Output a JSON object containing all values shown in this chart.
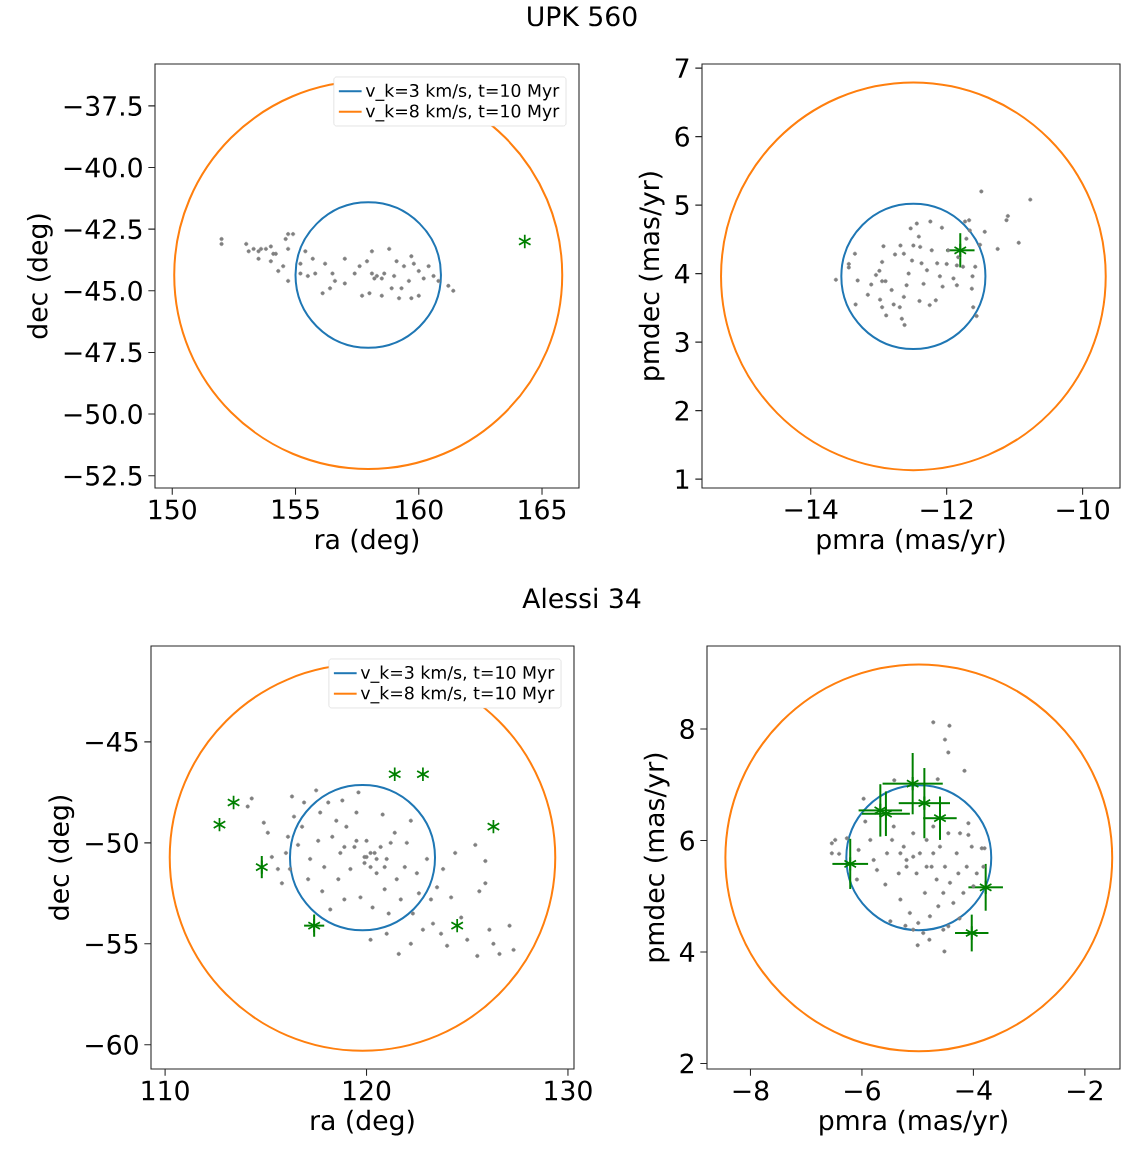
{
  "chart_data": [
    {
      "type": "scatter",
      "title": "UPK 560",
      "xlabel": "ra (deg)",
      "ylabel": "dec (deg)",
      "xlim": [
        149.3,
        166.5
      ],
      "ylim": [
        -53.0,
        -35.8
      ],
      "xticks": [
        150,
        155,
        160,
        165
      ],
      "yticks": [
        {
          "value": -37.5,
          "label": "−37.5"
        },
        {
          "value": -40.0,
          "label": "−40.0"
        },
        {
          "value": -42.5,
          "label": "−42.5"
        },
        {
          "value": -45.0,
          "label": "−45.0"
        },
        {
          "value": -47.5,
          "label": "−47.5"
        },
        {
          "value": -50.0,
          "label": "−50.0"
        },
        {
          "value": -52.5,
          "label": "−52.5"
        }
      ],
      "legend": "top right",
      "grid": false,
      "series": [
        {
          "type": "line",
          "name": "v_k=3 km/s, t=10 Myr",
          "color": "#1f77b4"
        },
        {
          "type": "line",
          "name": "v_k=8 km/s, t=10 Myr",
          "color": "#ff7f0e"
        },
        {
          "color": "#808080",
          "marker": "circle",
          "x": [
            152.0,
            152.0,
            153.0,
            153.1,
            153.3,
            153.5,
            153.6,
            153.8,
            154.0,
            154.1,
            154.2,
            154.0,
            153.5,
            154.3,
            154.5,
            154.7,
            154.6,
            154.7,
            154.9,
            155.4,
            155.2,
            155.2,
            154.7,
            155.5,
            155.7,
            155.8,
            156.1,
            156.2,
            156.4,
            156.5,
            156.6,
            157.0,
            157.0,
            157.4,
            157.6,
            157.7,
            157.9,
            158.1,
            158.0,
            158.2,
            158.3,
            158.5,
            158.6,
            158.8,
            158.9,
            159.0,
            159.1,
            159.2,
            159.3,
            159.7,
            159.7,
            159.8,
            160.0,
            160.0,
            160.2,
            160.4,
            160.6,
            160.8,
            161.2,
            161.4,
            159.4,
            159.6,
            158.5,
            158.1
          ],
          "values": [
            -42.9,
            -43.1,
            -43.1,
            -43.4,
            -43.3,
            -43.4,
            -43.3,
            -43.3,
            -43.2,
            -43.5,
            -43.5,
            -43.8,
            -43.7,
            -44.2,
            -44.0,
            -43.3,
            -42.9,
            -42.7,
            -42.7,
            -43.4,
            -43.9,
            -44.3,
            -44.6,
            -44.4,
            -43.7,
            -44.3,
            -45.1,
            -43.9,
            -44.9,
            -44.3,
            -44.6,
            -43.7,
            -44.7,
            -44.3,
            -44.0,
            -45.2,
            -43.8,
            -43.4,
            -45.1,
            -44.5,
            -44.4,
            -45.2,
            -44.3,
            -43.3,
            -44.9,
            -44.4,
            -43.8,
            -45.3,
            -44.9,
            -43.6,
            -45.3,
            -43.9,
            -44.2,
            -45.2,
            -44.5,
            -44.0,
            -44.4,
            -44.6,
            -44.8,
            -45.0,
            -44.0,
            -44.6,
            -44.5,
            -44.3
          ]
        },
        {
          "color": "#008000",
          "marker": "cross",
          "x": [
            164.3
          ],
          "values": [
            -43.0
          ]
        }
      ]
    },
    {
      "type": "scatter",
      "xlabel": "pmra (mas/yr)",
      "ylabel": "pmdec (mas/yr)",
      "xlim": [
        -15.6,
        -9.45
      ],
      "ylim": [
        0.87,
        7.06
      ],
      "xticks": [
        {
          "value": -14,
          "label": "−14"
        },
        {
          "value": -12,
          "label": "−12"
        },
        {
          "value": -10,
          "label": "−10"
        }
      ],
      "yticks": [
        1,
        2,
        3,
        4,
        5,
        6,
        7
      ],
      "grid": false,
      "series": [
        {
          "type": "line",
          "color": "#1f77b4"
        },
        {
          "type": "line",
          "color": "#ff7f0e"
        },
        {
          "color": "#808080",
          "marker": "circle",
          "x": [
            -13.63,
            -13.44,
            -13.44,
            -13.35,
            -13.31,
            -13.34,
            -13.16,
            -13.11,
            -13.04,
            -12.99,
            -12.95,
            -12.93,
            -12.95,
            -12.9,
            -12.98,
            -12.95,
            -12.89,
            -12.81,
            -12.78,
            -12.76,
            -12.69,
            -12.68,
            -12.66,
            -12.63,
            -12.62,
            -12.63,
            -12.59,
            -12.56,
            -12.51,
            -12.49,
            -12.53,
            -12.44,
            -12.41,
            -12.39,
            -12.4,
            -12.37,
            -12.34,
            -12.29,
            -12.25,
            -12.24,
            -12.22,
            -12.16,
            -12.14,
            -12.1,
            -12.07,
            -12.06,
            -12.0,
            -11.98,
            -11.9,
            -11.85,
            -11.83,
            -11.76,
            -11.73,
            -11.71,
            -11.66,
            -11.63,
            -11.62,
            -11.61,
            -11.58,
            -11.56,
            -11.51,
            -11.49,
            -11.44,
            -11.25,
            -11.12,
            -11.1,
            -10.94,
            -10.77,
            -11.67,
            -11.85
          ],
          "values": [
            3.91,
            4.14,
            4.09,
            4.29,
            3.9,
            3.55,
            3.69,
            3.84,
            3.98,
            4.04,
            4.17,
            4.4,
            3.89,
            3.89,
            3.62,
            3.51,
            3.39,
            3.76,
            3.55,
            4.28,
            3.51,
            4.41,
            3.34,
            3.66,
            3.25,
            4.29,
            3.83,
            4.0,
            4.19,
            4.41,
            4.66,
            4.73,
            4.54,
            4.39,
            3.6,
            4.15,
            3.85,
            4.05,
            3.54,
            4.76,
            4.34,
            3.61,
            4.15,
            3.96,
            4.67,
            3.81,
            4.14,
            4.34,
            3.93,
            3.83,
            4.24,
            4.1,
            4.76,
            4.51,
            4.63,
            3.78,
            3.96,
            3.51,
            4.1,
            3.38,
            4.42,
            5.2,
            4.61,
            4.36,
            4.78,
            4.84,
            4.45,
            5.08,
            4.78,
            4.12
          ]
        },
        {
          "color": "#008000",
          "marker": "cross",
          "x": [
            -11.8
          ],
          "values": [
            4.34
          ],
          "errors": [
            0.25
          ],
          "xerrors": [
            0.21
          ]
        }
      ]
    },
    {
      "type": "scatter",
      "title": "Alessi 34",
      "xlabel": "ra (deg)",
      "ylabel": "dec (deg)",
      "xlim": [
        109.3,
        130.3
      ],
      "ylim": [
        -61.2,
        -40.25
      ],
      "xticks": [
        110,
        120,
        130
      ],
      "yticks": [
        {
          "value": -45,
          "label": "−45"
        },
        {
          "value": -50,
          "label": "−50"
        },
        {
          "value": -55,
          "label": "−55"
        },
        {
          "value": -60,
          "label": "−60"
        }
      ],
      "legend": "top right",
      "grid": false,
      "series": [
        {
          "type": "line",
          "name": "v_k=3 km/s, t=10 Myr",
          "color": "#1f77b4"
        },
        {
          "type": "line",
          "name": "v_k=8 km/s, t=10 Myr",
          "color": "#ff7f0e"
        },
        {
          "color": "#808080",
          "marker": "circle",
          "x": [
            114.3,
            114.1,
            114.9,
            115.1,
            115.3,
            115.6,
            115.8,
            116.3,
            116.4,
            116.1,
            116.0,
            116.2,
            116.6,
            116.8,
            116.9,
            117.1,
            117.2,
            117.5,
            117.6,
            117.7,
            117.8,
            117.9,
            118.1,
            118.2,
            118.3,
            118.5,
            118.6,
            118.7,
            118.8,
            118.9,
            119.0,
            119.2,
            119.4,
            119.5,
            119.6,
            119.7,
            119.9,
            120.0,
            120.2,
            120.3,
            120.4,
            120.5,
            120.7,
            120.8,
            120.9,
            121.0,
            121.1,
            121.2,
            121.4,
            121.5,
            121.7,
            121.9,
            122.0,
            122.2,
            122.3,
            122.5,
            122.6,
            122.8,
            123.0,
            123.2,
            123.3,
            123.5,
            123.7,
            123.8,
            124.0,
            124.2,
            124.4,
            124.7,
            125.0,
            125.4,
            125.6,
            125.9,
            125.9,
            126.1,
            126.3,
            126.6,
            127.1,
            127.3,
            121.6,
            120.2,
            125.5,
            121.0,
            122.2,
            120.0,
            120.2,
            120.5,
            119.9,
            119.5,
            118.9,
            120.9
          ],
          "values": [
            -47.8,
            -48.2,
            -49.0,
            -49.5,
            -50.7,
            -51.3,
            -52.0,
            -47.7,
            -48.7,
            -49.7,
            -50.5,
            -51.3,
            -50.1,
            -49.2,
            -48.0,
            -51.8,
            -50.8,
            -47.4,
            -49.9,
            -48.5,
            -52.4,
            -51.2,
            -48.0,
            -53.3,
            -49.7,
            -48.9,
            -51.8,
            -50.5,
            -47.9,
            -52.8,
            -49.2,
            -51.3,
            -50.2,
            -48.5,
            -47.5,
            -52.7,
            -50.7,
            -49.9,
            -51.2,
            -53.2,
            -50.5,
            -51.5,
            -50.2,
            -48.6,
            -52.3,
            -50.8,
            -53.5,
            -50.0,
            -49.5,
            -51.8,
            -52.8,
            -51.2,
            -50.0,
            -48.9,
            -53.5,
            -51.5,
            -52.5,
            -54.3,
            -50.8,
            -52.8,
            -54.0,
            -52.2,
            -54.5,
            -51.3,
            -55.1,
            -52.7,
            -50.5,
            -53.7,
            -54.8,
            -50.1,
            -52.4,
            -50.9,
            -52.0,
            -54.3,
            -55.0,
            -55.5,
            -54.1,
            -55.3,
            -55.5,
            -54.8,
            -55.6,
            -54.5,
            -55.0,
            -50.7,
            -50.5,
            -50.8,
            -51.0,
            -49.9,
            -50.2,
            -51.2
          ]
        },
        {
          "color": "#008000",
          "marker": "cross",
          "x": [
            112.7,
            113.4,
            114.8,
            117.4,
            121.4,
            122.8,
            126.3,
            124.5
          ],
          "values": [
            -49.1,
            -48.0,
            -51.2,
            -54.1,
            -46.6,
            -46.6,
            -49.2,
            -54.1
          ],
          "errors": [
            null,
            null,
            0.55,
            0.55,
            null,
            null,
            null,
            null
          ],
          "xerrors": [
            null,
            null,
            null,
            0.5,
            null,
            null,
            null,
            null
          ]
        }
      ]
    },
    {
      "type": "scatter",
      "xlabel": "pmra (mas/yr)",
      "ylabel": "pmdec (mas/yr)",
      "xlim": [
        -8.78,
        -1.37
      ],
      "ylim": [
        1.9,
        9.49
      ],
      "xticks": [
        {
          "value": -8,
          "label": "−8"
        },
        {
          "value": -6,
          "label": "−6"
        },
        {
          "value": -4,
          "label": "−4"
        },
        {
          "value": -2,
          "label": "−2"
        }
      ],
      "yticks": [
        2,
        4,
        6,
        8
      ],
      "grid": false,
      "series": [
        {
          "type": "line",
          "color": "#1f77b4"
        },
        {
          "type": "line",
          "color": "#ff7f0e"
        },
        {
          "color": "#808080",
          "marker": "circle",
          "x": [
            -4.72,
            -4.43,
            -4.51,
            -4.45,
            -4.16,
            -5.42,
            -4.64,
            -5.97,
            -6.48,
            -6.54,
            -6.41,
            -6.27,
            -6.06,
            -6.09,
            -5.94,
            -5.85,
            -5.79,
            -5.73,
            -5.58,
            -5.55,
            -5.46,
            -5.43,
            -5.34,
            -5.31,
            -5.25,
            -5.2,
            -5.14,
            -5.08,
            -5.02,
            -4.99,
            -4.96,
            -4.87,
            -4.84,
            -4.78,
            -4.75,
            -4.72,
            -4.66,
            -4.63,
            -4.6,
            -4.54,
            -4.51,
            -4.45,
            -4.42,
            -4.36,
            -4.3,
            -4.27,
            -4.24,
            -4.18,
            -4.12,
            -4.09,
            -4.03,
            -4.0,
            -3.94,
            -3.85,
            -3.82,
            -4.25,
            -4.52,
            -5.0,
            -4.79,
            -5.49,
            -5.22,
            -5.08,
            -4.45,
            -4.54,
            -4.9,
            -4.09,
            -3.8,
            -6.54,
            -5.31,
            -5.08,
            -5.2,
            -4.84,
            -4.72
          ],
          "values": [
            8.12,
            8.06,
            7.81,
            7.58,
            7.25,
            7.08,
            7.1,
            6.75,
            6.01,
            5.77,
            5.76,
            6.04,
            5.83,
            5.3,
            6.34,
            6.01,
            5.65,
            5.47,
            5.21,
            5.77,
            6.01,
            6.25,
            5.41,
            4.94,
            5.89,
            5.65,
            4.7,
            6.13,
            5.41,
            4.52,
            5.77,
            5.06,
            6.01,
            4.64,
            5.53,
            6.25,
            5.3,
            4.82,
            5.89,
            5.06,
            5.53,
            6.13,
            5.24,
            4.88,
            5.77,
            5.41,
            6.13,
            5.06,
            5.53,
            6.31,
            5.89,
            5.18,
            5.41,
            5.86,
            5.53,
            4.6,
            4.01,
            4.12,
            4.22,
            4.55,
            4.47,
            4.4,
            4.46,
            4.4,
            4.34,
            6.1,
            5.86,
            5.95,
            5.77,
            5.71,
            5.53,
            5.53,
            5.77
          ]
        },
        {
          "color": "#008000",
          "marker": "cross",
          "x": [
            -5.09,
            -4.88,
            -4.6,
            -5.67,
            -5.57,
            -6.21,
            -3.78,
            -4.03
          ],
          "values": [
            7.02,
            6.67,
            6.4,
            6.54,
            6.48,
            5.58,
            5.16,
            4.34
          ],
          "errors": [
            0.55,
            0.63,
            0.39,
            0.47,
            0.4,
            0.45,
            0.42,
            0.33
          ],
          "xerrors": [
            0.54,
            0.46,
            0.3,
            0.39,
            0.43,
            0.32,
            0.31,
            0.3
          ]
        }
      ]
    }
  ]
}
